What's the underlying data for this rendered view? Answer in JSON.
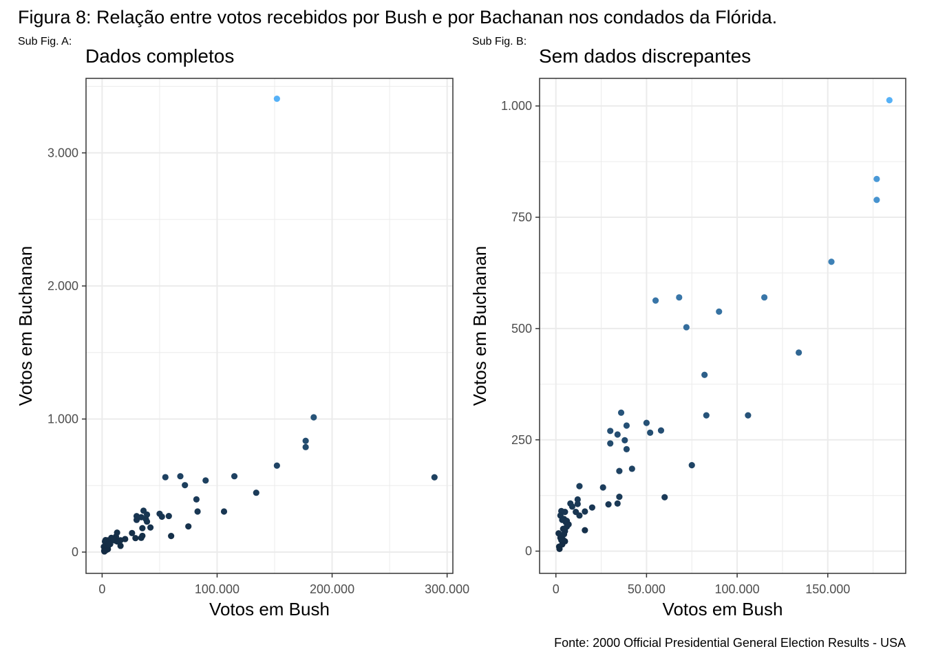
{
  "figure": {
    "title": "Figura 8: Relação entre votos recebidos por Bush e por Bachanan nos condados da Flórida.",
    "source": "Fonte: 2000 Official Presidential General Election Results - USA"
  },
  "colors": {
    "low": "#132B43",
    "high": "#56B1F7",
    "grid": "#ebebeb",
    "border": "#333333",
    "tick": "#4d4d4d"
  },
  "chart_data": [
    {
      "type": "scatter",
      "tag": "Sub Fig. A:",
      "title": "Dados completos",
      "xlabel": "Votos em Bush",
      "ylabel": "Votos em Buchanan",
      "xlim": [
        -14000,
        305000
      ],
      "ylim": [
        -160,
        3560
      ],
      "xticks": [
        0,
        100000,
        200000,
        300000
      ],
      "xtick_labels": [
        "0",
        "100.000",
        "200.000",
        "300.000"
      ],
      "yticks": [
        0,
        1000,
        2000,
        3000
      ],
      "ytick_labels": [
        "0",
        "1.000",
        "2.000",
        "3.000"
      ],
      "grid": true,
      "points": [
        [
          152000,
          3407
        ],
        [
          184000,
          1013
        ],
        [
          177000,
          836
        ],
        [
          177000,
          789
        ],
        [
          152000,
          650
        ],
        [
          289000,
          562
        ],
        [
          55000,
          563
        ],
        [
          68000,
          570
        ],
        [
          115000,
          570
        ],
        [
          90000,
          538
        ],
        [
          72000,
          503
        ],
        [
          134000,
          446
        ],
        [
          82000,
          396
        ],
        [
          83000,
          305
        ],
        [
          106000,
          305
        ],
        [
          36000,
          311
        ],
        [
          50000,
          288
        ],
        [
          30000,
          270
        ],
        [
          34000,
          262
        ],
        [
          39000,
          282
        ],
        [
          52000,
          266
        ],
        [
          58000,
          271
        ],
        [
          30000,
          242
        ],
        [
          38000,
          249
        ],
        [
          39000,
          229
        ],
        [
          42000,
          185
        ],
        [
          75000,
          193
        ],
        [
          35000,
          180
        ],
        [
          60000,
          121
        ],
        [
          35000,
          122
        ],
        [
          26000,
          143
        ],
        [
          13000,
          146
        ],
        [
          29000,
          105
        ],
        [
          34000,
          107
        ],
        [
          20000,
          98
        ],
        [
          12000,
          116
        ],
        [
          12000,
          106
        ],
        [
          8000,
          107
        ],
        [
          16000,
          89
        ],
        [
          11000,
          88
        ],
        [
          13000,
          80
        ],
        [
          16000,
          47
        ],
        [
          9000,
          100
        ],
        [
          5000,
          88
        ],
        [
          3000,
          90
        ],
        [
          2500,
          80
        ],
        [
          3500,
          70
        ],
        [
          4500,
          72
        ],
        [
          5500,
          65
        ],
        [
          6000,
          68
        ],
        [
          4000,
          50
        ],
        [
          5000,
          45
        ],
        [
          4500,
          38
        ],
        [
          1500,
          40
        ],
        [
          2500,
          30
        ],
        [
          3000,
          25
        ],
        [
          4000,
          25
        ],
        [
          5000,
          22
        ],
        [
          1800,
          10
        ],
        [
          6000,
          55
        ],
        [
          7000,
          60
        ],
        [
          3500,
          15
        ],
        [
          2000,
          5
        ]
      ]
    },
    {
      "type": "scatter",
      "tag": "Sub Fig. B:",
      "title": "Sem dados discrepantes",
      "xlabel": "Votos em Bush",
      "ylabel": "Votos em Buchanan",
      "xlim": [
        -9000,
        193000
      ],
      "ylim": [
        -50,
        1062
      ],
      "xticks": [
        0,
        50000,
        100000,
        150000
      ],
      "xtick_labels": [
        "0",
        "50.000",
        "100.000",
        "150.000"
      ],
      "yticks": [
        0,
        250,
        500,
        750,
        1000
      ],
      "ytick_labels": [
        "0",
        "250",
        "500",
        "750",
        "1.000"
      ],
      "grid": true,
      "points": [
        [
          184000,
          1013
        ],
        [
          177000,
          836
        ],
        [
          177000,
          789
        ],
        [
          152000,
          650
        ],
        [
          55000,
          563
        ],
        [
          68000,
          570
        ],
        [
          115000,
          570
        ],
        [
          90000,
          538
        ],
        [
          72000,
          503
        ],
        [
          134000,
          446
        ],
        [
          82000,
          396
        ],
        [
          83000,
          305
        ],
        [
          106000,
          305
        ],
        [
          36000,
          311
        ],
        [
          50000,
          288
        ],
        [
          30000,
          270
        ],
        [
          34000,
          262
        ],
        [
          39000,
          282
        ],
        [
          52000,
          266
        ],
        [
          58000,
          271
        ],
        [
          30000,
          242
        ],
        [
          38000,
          249
        ],
        [
          39000,
          229
        ],
        [
          42000,
          185
        ],
        [
          75000,
          193
        ],
        [
          35000,
          180
        ],
        [
          60000,
          121
        ],
        [
          35000,
          122
        ],
        [
          26000,
          143
        ],
        [
          13000,
          146
        ],
        [
          29000,
          105
        ],
        [
          34000,
          107
        ],
        [
          20000,
          98
        ],
        [
          12000,
          116
        ],
        [
          12000,
          106
        ],
        [
          8000,
          107
        ],
        [
          16000,
          89
        ],
        [
          11000,
          88
        ],
        [
          13000,
          80
        ],
        [
          16000,
          47
        ],
        [
          9000,
          100
        ],
        [
          5000,
          88
        ],
        [
          3000,
          90
        ],
        [
          2500,
          80
        ],
        [
          3500,
          70
        ],
        [
          4500,
          72
        ],
        [
          5500,
          65
        ],
        [
          6000,
          68
        ],
        [
          4000,
          50
        ],
        [
          5000,
          45
        ],
        [
          4500,
          38
        ],
        [
          1500,
          40
        ],
        [
          2500,
          30
        ],
        [
          3000,
          25
        ],
        [
          4000,
          25
        ],
        [
          5000,
          22
        ],
        [
          1800,
          10
        ],
        [
          6000,
          55
        ],
        [
          7000,
          60
        ],
        [
          3500,
          15
        ],
        [
          2000,
          5
        ]
      ]
    }
  ]
}
